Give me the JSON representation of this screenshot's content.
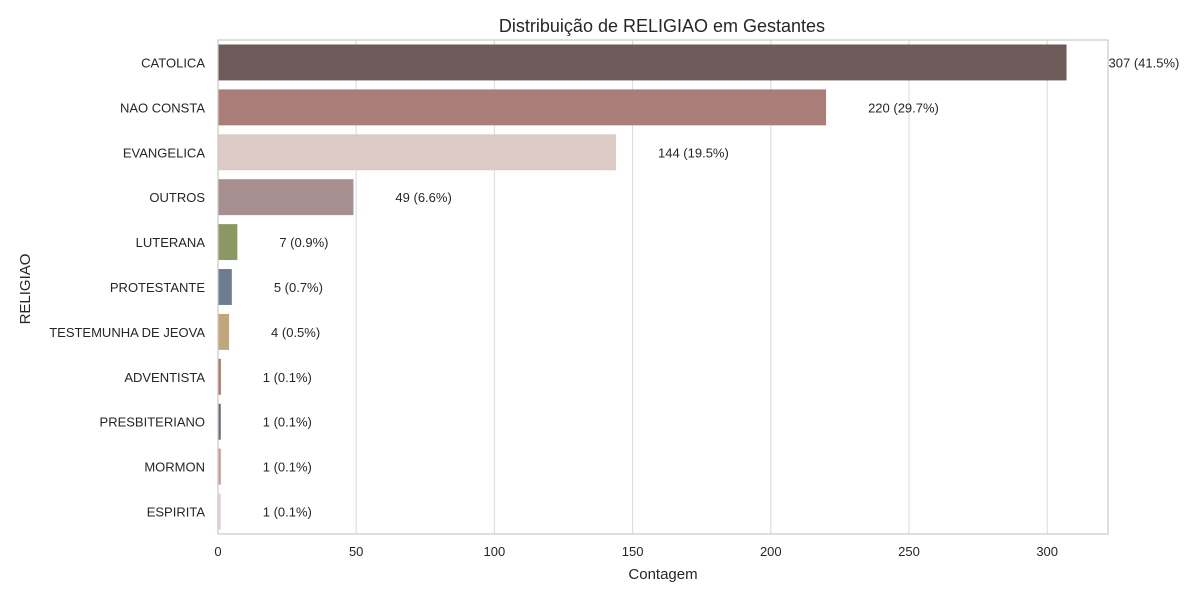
{
  "chart_data": {
    "type": "bar",
    "orientation": "horizontal",
    "title": "Distribuição de RELIGIAO em Gestantes",
    "xlabel": "Contagem",
    "ylabel": "RELIGIAO",
    "xlim": [
      0,
      322
    ],
    "xticks": [
      0,
      50,
      100,
      150,
      200,
      250,
      300
    ],
    "grid": "vertical",
    "categories": [
      "CATOLICA",
      "NAO CONSTA",
      "EVANGELICA",
      "OUTROS",
      "LUTERANA",
      "PROTESTANTE",
      "TESTEMUNHA DE JEOVA",
      "ADVENTISTA",
      "PRESBITERIANO",
      "MORMON",
      "ESPIRITA"
    ],
    "values": [
      307,
      220,
      144,
      49,
      7,
      5,
      4,
      1,
      1,
      1,
      1
    ],
    "data_labels": [
      "307 (41.5%)",
      "220 (29.7%)",
      "144 (19.5%)",
      "49 (6.6%)",
      "7 (0.9%)",
      "5 (0.7%)",
      "4 (0.5%)",
      "1 (0.1%)",
      "1 (0.1%)",
      "1 (0.1%)",
      "1 (0.1%)"
    ],
    "colors": [
      "#6d5a59",
      "#a97e79",
      "#dbcac6",
      "#a78f8f",
      "#8b9863",
      "#6d7d8f",
      "#c1a67a",
      "#b06e5d",
      "#6e6a77",
      "#c99a8f",
      "#e4d1cf"
    ]
  }
}
